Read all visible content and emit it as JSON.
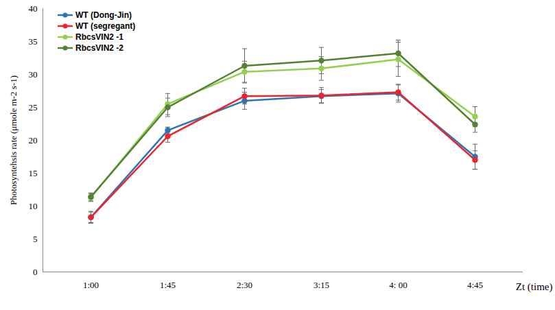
{
  "chart_data": {
    "type": "line",
    "x_label": "Zt (time)",
    "y_label": "Photosyntehsis rate (μmole m-2 s-1)",
    "categories": [
      "1:00",
      "1:45",
      "2:30",
      "3:15",
      "4: 00",
      "4:45"
    ],
    "ylim": [
      0,
      40
    ],
    "yticks": [
      0,
      5,
      10,
      15,
      20,
      25,
      30,
      35,
      40
    ],
    "grid": false,
    "legend": "upper left",
    "series": [
      {
        "name": "WT (Dong-Jin)",
        "color": "#2e75b6",
        "marker": "circle",
        "values": [
          8.3,
          21.5,
          26.0,
          26.7,
          27.1,
          17.5
        ],
        "errors": [
          0.8,
          0.5,
          1.3,
          1.0,
          1.3,
          1.9
        ]
      },
      {
        "name": "WT (segregant)",
        "color": "#e8262b",
        "marker": "circle",
        "values": [
          8.3,
          20.6,
          26.7,
          26.8,
          27.3,
          17.0
        ],
        "errors": [
          0.9,
          0.9,
          1.2,
          1.2,
          1.2,
          1.4
        ]
      },
      {
        "name": "RbcsVIN2 -1",
        "color": "#92d050",
        "marker": "circle",
        "values": [
          11.3,
          25.5,
          30.4,
          30.9,
          32.3,
          23.6
        ],
        "errors": [
          0.6,
          1.6,
          1.6,
          1.8,
          2.6,
          1.5
        ]
      },
      {
        "name": "RbcsVIN2 -2",
        "color": "#548235",
        "marker": "circle",
        "values": [
          11.4,
          25.0,
          31.3,
          32.1,
          33.2,
          22.4
        ],
        "errors": [
          0.6,
          1.4,
          2.6,
          2.0,
          2.0,
          1.2
        ]
      }
    ]
  }
}
